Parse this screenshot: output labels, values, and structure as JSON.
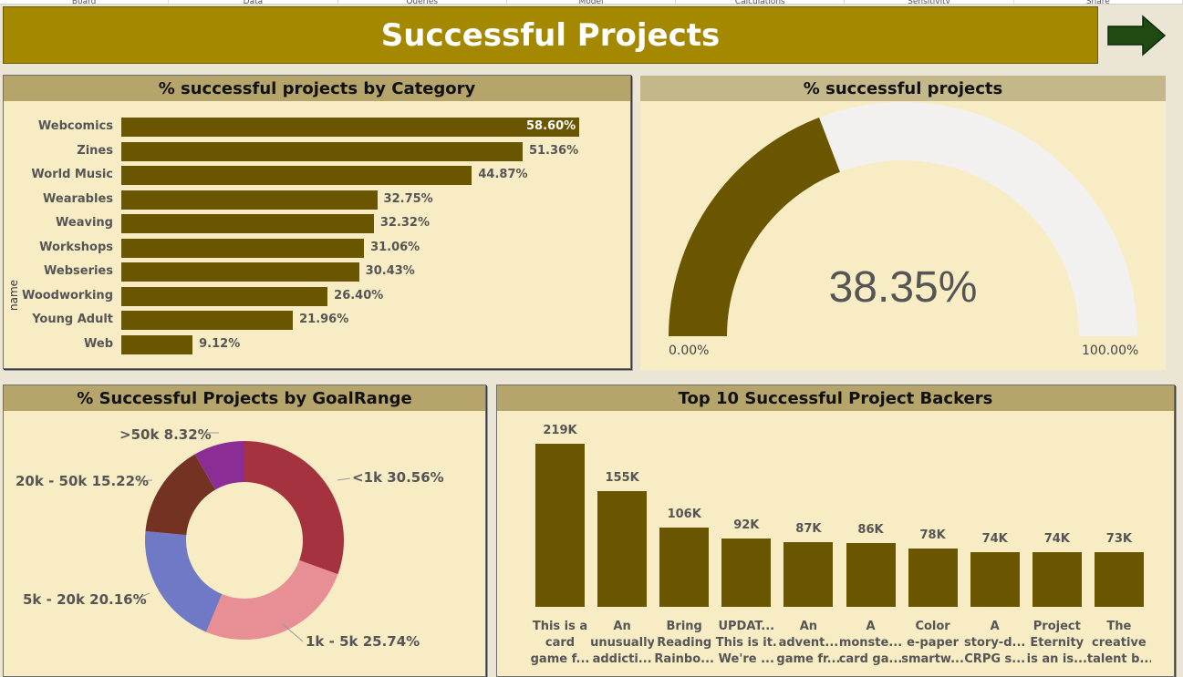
{
  "top_strip": [
    "Board",
    "Data",
    "Queries",
    "Model",
    "Calculations",
    "Sensitivity",
    "Share"
  ],
  "title": "Successful Projects",
  "nav": {
    "icon": "right-arrow-icon"
  },
  "category_chart": {
    "header": "% successful projects by Category",
    "axis_label": "name",
    "chart_data": {
      "type": "bar",
      "orientation": "horizontal",
      "categories": [
        "Webcomics",
        "Zines",
        "World Music",
        "Wearables",
        "Weaving",
        "Workshops",
        "Webseries",
        "Woodworking",
        "Young Adult",
        "Web"
      ],
      "values": [
        58.6,
        51.36,
        44.87,
        32.75,
        32.32,
        31.06,
        30.43,
        26.4,
        21.96,
        9.12
      ],
      "labels": [
        "58.60%",
        "51.36%",
        "44.87%",
        "32.75%",
        "32.32%",
        "31.06%",
        "30.43%",
        "26.40%",
        "21.96%",
        "9.12%"
      ],
      "ylabel": "name",
      "color": "#6b5600"
    }
  },
  "gauge": {
    "header": "% successful projects",
    "value": 38.35,
    "value_label": "38.35%",
    "min_label": "0.00%",
    "max_label": "100.00%",
    "fill_color": "#6b5600",
    "track_color": "#f3f1ef"
  },
  "goal_chart": {
    "header": "% Successful Projects by GoalRange",
    "chart_data": {
      "type": "pie",
      "variant": "donut",
      "slices": [
        {
          "name": "<1k",
          "value": 30.56,
          "label": "<1k 30.56%",
          "color": "#a4323f"
        },
        {
          "name": "1k - 5k",
          "value": 25.74,
          "label": "1k - 5k 25.74%",
          "color": "#e88f96"
        },
        {
          "name": "5k - 20k",
          "value": 20.16,
          "label": "5k - 20k 20.16%",
          "color": "#7079c6"
        },
        {
          "name": "20k - 50k",
          "value": 15.22,
          "label": "20k - 50k 15.22%",
          "color": "#733222"
        },
        {
          "name": ">50k",
          "value": 8.32,
          "label": ">50k 8.32%",
          "color": "#8a2e96"
        }
      ]
    }
  },
  "backers_chart": {
    "header": "Top 10 Successful Project Backers",
    "chart_data": {
      "type": "bar",
      "values": [
        219,
        155,
        106,
        92,
        87,
        86,
        78,
        74,
        74,
        73
      ],
      "labels": [
        "219K",
        "155K",
        "106K",
        "92K",
        "87K",
        "86K",
        "78K",
        "74K",
        "74K",
        "73K"
      ],
      "categories": [
        [
          "This is a",
          "card",
          "game f..."
        ],
        [
          "An",
          "unusually",
          "addicti..."
        ],
        [
          "Bring",
          "Reading",
          "Rainbo..."
        ],
        [
          "UPDAT...",
          "This is it.",
          "We're ..."
        ],
        [
          "An",
          "advent...",
          "game fr..."
        ],
        [
          "A",
          "monste...",
          "card ga..."
        ],
        [
          "Color",
          "e-paper",
          "smartw..."
        ],
        [
          "A",
          "story-d...",
          "CRPG s..."
        ],
        [
          "Project",
          "Eternity",
          "is an is..."
        ],
        [
          "The",
          "creative",
          "talent b..."
        ]
      ],
      "color": "#6b5600"
    }
  }
}
